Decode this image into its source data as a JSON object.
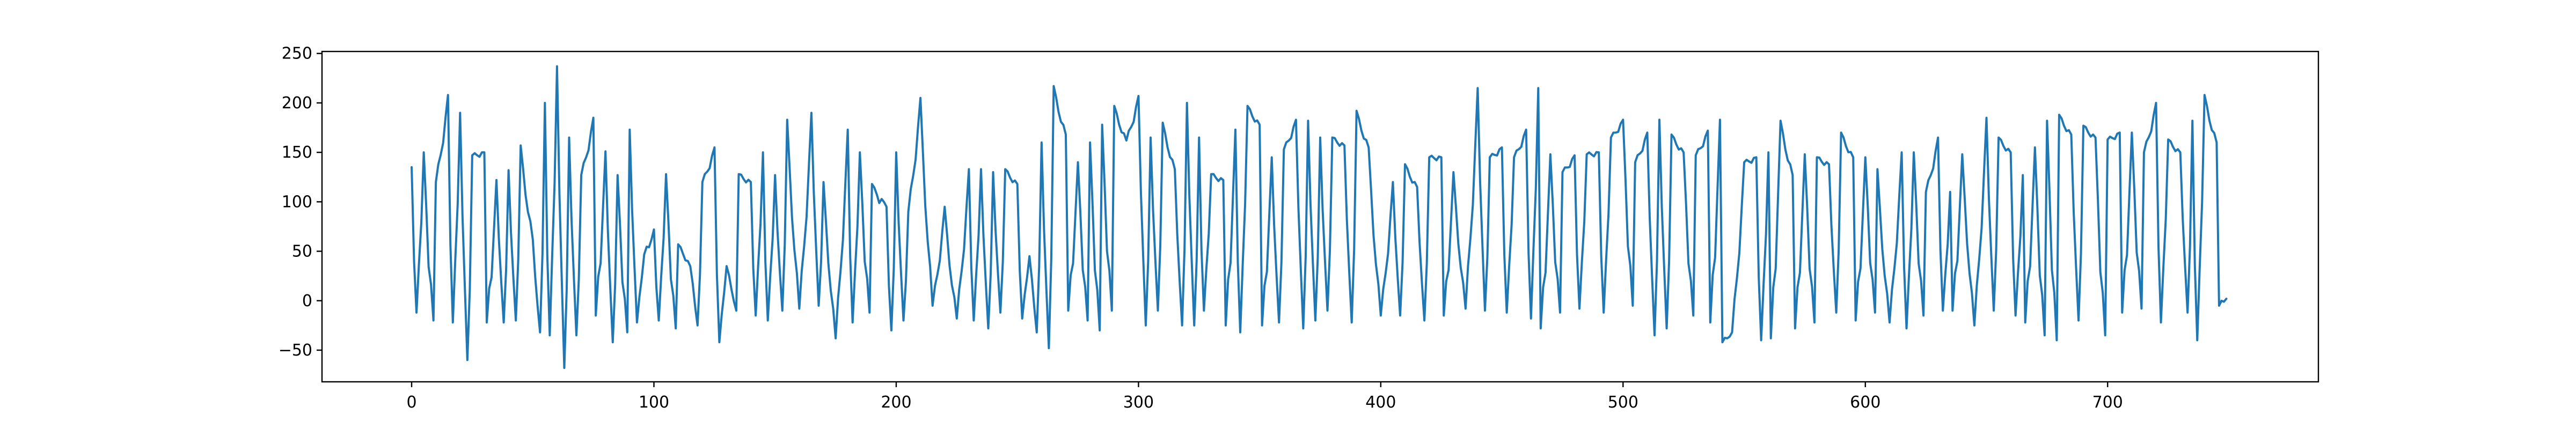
{
  "chart_data": {
    "type": "line",
    "title": "",
    "xlabel": "",
    "ylabel": "",
    "xlim": [
      -37,
      787
    ],
    "ylim": [
      -82,
      252
    ],
    "x_ticks": [
      0,
      100,
      200,
      300,
      400,
      500,
      600,
      700
    ],
    "y_ticks": [
      -50,
      0,
      50,
      100,
      150,
      200,
      250
    ],
    "x_tick_labels": [
      "0",
      "100",
      "200",
      "300",
      "400",
      "500",
      "600",
      "700"
    ],
    "y_tick_labels": [
      "−50",
      "0",
      "50",
      "100",
      "150",
      "200",
      "250"
    ],
    "grid": false,
    "legend": "none",
    "color": "#1f77b4",
    "n_points": 750,
    "peaks": [
      [
        0,
        135
      ],
      [
        5,
        150
      ],
      [
        10,
        120
      ],
      [
        15,
        208
      ],
      [
        20,
        190
      ],
      [
        25,
        147
      ],
      [
        30,
        150
      ],
      [
        35,
        122
      ],
      [
        40,
        132
      ],
      [
        45,
        157
      ],
      [
        50,
        62
      ],
      [
        55,
        200
      ],
      [
        60,
        237
      ],
      [
        65,
        165
      ],
      [
        70,
        127
      ],
      [
        75,
        185
      ],
      [
        80,
        151
      ],
      [
        85,
        127
      ],
      [
        90,
        173
      ],
      [
        96,
        47
      ],
      [
        100,
        72
      ],
      [
        105,
        128
      ],
      [
        110,
        57
      ],
      [
        115,
        35
      ],
      [
        120,
        120
      ],
      [
        125,
        155
      ],
      [
        130,
        35
      ],
      [
        135,
        128
      ],
      [
        140,
        120
      ],
      [
        145,
        150
      ],
      [
        150,
        127
      ],
      [
        155,
        183
      ],
      [
        160,
        123
      ],
      [
        165,
        190
      ],
      [
        170,
        120
      ],
      [
        175,
        158
      ],
      [
        180,
        173
      ],
      [
        185,
        150
      ],
      [
        190,
        118
      ],
      [
        196,
        95
      ],
      [
        200,
        150
      ],
      [
        205,
        90
      ],
      [
        210,
        205
      ],
      [
        215,
        127
      ],
      [
        220,
        95
      ],
      [
        225,
        90
      ],
      [
        230,
        133
      ],
      [
        235,
        133
      ],
      [
        240,
        130
      ],
      [
        245,
        133
      ],
      [
        250,
        118
      ],
      [
        255,
        45
      ],
      [
        260,
        160
      ],
      [
        265,
        217
      ],
      [
        270,
        168
      ],
      [
        275,
        140
      ],
      [
        280,
        160
      ],
      [
        285,
        178
      ],
      [
        290,
        197
      ],
      [
        295,
        162
      ],
      [
        300,
        207
      ],
      [
        305,
        165
      ],
      [
        310,
        180
      ],
      [
        315,
        133
      ],
      [
        320,
        200
      ],
      [
        325,
        165
      ],
      [
        330,
        128
      ],
      [
        335,
        122
      ],
      [
        340,
        173
      ],
      [
        345,
        197
      ],
      [
        350,
        178
      ],
      [
        355,
        145
      ],
      [
        360,
        153
      ],
      [
        365,
        183
      ],
      [
        370,
        182
      ],
      [
        375,
        165
      ],
      [
        380,
        165
      ],
      [
        385,
        157
      ],
      [
        390,
        192
      ],
      [
        395,
        155
      ],
      [
        400,
        155
      ],
      [
        405,
        120
      ],
      [
        410,
        138
      ],
      [
        415,
        115
      ],
      [
        420,
        145
      ],
      [
        425,
        145
      ],
      [
        430,
        130
      ],
      [
        435,
        160
      ],
      [
        440,
        215
      ],
      [
        445,
        145
      ],
      [
        450,
        155
      ],
      [
        455,
        145
      ],
      [
        460,
        173
      ],
      [
        465,
        215
      ],
      [
        470,
        148
      ],
      [
        475,
        130
      ],
      [
        480,
        147
      ],
      [
        485,
        148
      ],
      [
        490,
        150
      ],
      [
        495,
        165
      ],
      [
        500,
        183
      ],
      [
        505,
        140
      ],
      [
        510,
        170
      ],
      [
        515,
        183
      ],
      [
        520,
        168
      ],
      [
        525,
        150
      ],
      [
        530,
        147
      ],
      [
        535,
        172
      ],
      [
        540,
        183
      ],
      [
        545,
        183
      ],
      [
        550,
        140
      ],
      [
        555,
        145
      ],
      [
        560,
        150
      ],
      [
        565,
        182
      ],
      [
        570,
        127
      ],
      [
        575,
        148
      ],
      [
        580,
        145
      ],
      [
        585,
        138
      ],
      [
        590,
        170
      ],
      [
        595,
        145
      ],
      [
        600,
        145
      ],
      [
        605,
        133
      ],
      [
        610,
        150
      ],
      [
        615,
        150
      ],
      [
        620,
        150
      ],
      [
        625,
        110
      ],
      [
        630,
        165
      ],
      [
        635,
        110
      ],
      [
        640,
        148
      ],
      [
        645,
        165
      ],
      [
        650,
        185
      ],
      [
        655,
        165
      ],
      [
        660,
        150
      ],
      [
        665,
        127
      ],
      [
        670,
        155
      ],
      [
        675,
        182
      ],
      [
        680,
        188
      ],
      [
        685,
        168
      ],
      [
        690,
        177
      ],
      [
        695,
        165
      ],
      [
        700,
        163
      ],
      [
        705,
        170
      ],
      [
        710,
        170
      ],
      [
        715,
        150
      ],
      [
        720,
        200
      ],
      [
        725,
        163
      ],
      [
        730,
        150
      ],
      [
        735,
        182
      ],
      [
        740,
        208
      ],
      [
        745,
        160
      ]
    ],
    "troughs": [
      [
        2,
        -12
      ],
      [
        9,
        -20
      ],
      [
        17,
        -22
      ],
      [
        23,
        -60
      ],
      [
        31,
        -22
      ],
      [
        38,
        -22
      ],
      [
        43,
        -20
      ],
      [
        53,
        -32
      ],
      [
        57,
        -35
      ],
      [
        63,
        -68
      ],
      [
        68,
        -35
      ],
      [
        76,
        -15
      ],
      [
        83,
        -42
      ],
      [
        89,
        -32
      ],
      [
        93,
        -22
      ],
      [
        102,
        -20
      ],
      [
        109,
        -28
      ],
      [
        118,
        -25
      ],
      [
        127,
        -42
      ],
      [
        134,
        -10
      ],
      [
        142,
        -15
      ],
      [
        147,
        -20
      ],
      [
        153,
        -10
      ],
      [
        160,
        -8
      ],
      [
        168,
        -5
      ],
      [
        175,
        -38
      ],
      [
        182,
        -22
      ],
      [
        189,
        -12
      ],
      [
        198,
        -30
      ],
      [
        203,
        -20
      ],
      [
        215,
        -5
      ],
      [
        225,
        -18
      ],
      [
        232,
        -20
      ],
      [
        238,
        -28
      ],
      [
        243,
        -12
      ],
      [
        252,
        -18
      ],
      [
        258,
        -32
      ],
      [
        263,
        -48
      ],
      [
        271,
        -10
      ],
      [
        279,
        -20
      ],
      [
        284,
        -30
      ],
      [
        289,
        -10
      ],
      [
        303,
        -25
      ],
      [
        308,
        -10
      ],
      [
        318,
        -25
      ],
      [
        323,
        -25
      ],
      [
        327,
        -10
      ],
      [
        336,
        -25
      ],
      [
        342,
        -32
      ],
      [
        351,
        -25
      ],
      [
        358,
        -22
      ],
      [
        368,
        -28
      ],
      [
        373,
        -20
      ],
      [
        378,
        -10
      ],
      [
        388,
        -22
      ],
      [
        400,
        -15
      ],
      [
        408,
        -15
      ],
      [
        418,
        -20
      ],
      [
        426,
        -15
      ],
      [
        435,
        -8
      ],
      [
        443,
        -10
      ],
      [
        452,
        -12
      ],
      [
        462,
        -18
      ],
      [
        466,
        -28
      ],
      [
        474,
        -12
      ],
      [
        482,
        -8
      ],
      [
        492,
        -12
      ],
      [
        504,
        -5
      ],
      [
        513,
        -35
      ],
      [
        518,
        -28
      ],
      [
        529,
        -15
      ],
      [
        536,
        -22
      ],
      [
        541,
        -42
      ],
      [
        545,
        -32
      ],
      [
        557,
        -40
      ],
      [
        561,
        -38
      ],
      [
        571,
        -28
      ],
      [
        579,
        -22
      ],
      [
        588,
        -12
      ],
      [
        596,
        -20
      ],
      [
        604,
        -12
      ],
      [
        610,
        -22
      ],
      [
        617,
        -28
      ],
      [
        624,
        -15
      ],
      [
        632,
        -10
      ],
      [
        636,
        -10
      ],
      [
        645,
        -25
      ],
      [
        653,
        -10
      ],
      [
        662,
        -15
      ],
      [
        666,
        -22
      ],
      [
        674,
        -35
      ],
      [
        679,
        -40
      ],
      [
        688,
        -20
      ],
      [
        699,
        -35
      ],
      [
        706,
        -12
      ],
      [
        714,
        -8
      ],
      [
        722,
        -22
      ],
      [
        733,
        -12
      ],
      [
        737,
        -40
      ],
      [
        746,
        -5
      ]
    ],
    "last_value": 2
  }
}
